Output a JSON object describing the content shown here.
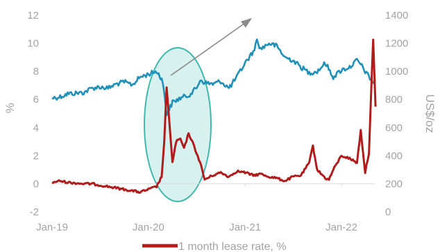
{
  "chart_data": {
    "type": "line",
    "x_tick_labels": [
      "Jan-19",
      "Jan-20",
      "Jan-21",
      "Jan-22"
    ],
    "y_left": {
      "label": "%",
      "ticks": [
        -2,
        0,
        2,
        4,
        6,
        8,
        10,
        12
      ],
      "ylim": [
        -2,
        12
      ]
    },
    "y_right": {
      "label": "US$/oz",
      "ticks": [
        0,
        200,
        400,
        600,
        800,
        1000,
        1200,
        1400
      ],
      "ylim": [
        0,
        1400
      ]
    },
    "x_range": [
      "2019-01-01",
      "2022-06-01"
    ],
    "grid": false,
    "series": [
      {
        "name": "1 month lease rate, %",
        "axis": "left",
        "color": "#b01c1c",
        "points": [
          [
            "2019-01-01",
            0.1
          ],
          [
            "2019-02-01",
            0.2
          ],
          [
            "2019-03-01",
            0.1
          ],
          [
            "2019-04-01",
            0.05
          ],
          [
            "2019-05-01",
            0.0
          ],
          [
            "2019-06-01",
            0.0
          ],
          [
            "2019-07-01",
            -0.1
          ],
          [
            "2019-08-01",
            -0.2
          ],
          [
            "2019-09-01",
            -0.3
          ],
          [
            "2019-10-01",
            -0.4
          ],
          [
            "2019-11-01",
            -0.5
          ],
          [
            "2019-12-01",
            -0.6
          ],
          [
            "2020-01-01",
            -0.4
          ],
          [
            "2020-02-01",
            -0.2
          ],
          [
            "2020-02-20",
            0.5
          ],
          [
            "2020-03-01",
            3.0
          ],
          [
            "2020-03-10",
            6.8
          ],
          [
            "2020-03-20",
            4.5
          ],
          [
            "2020-04-01",
            1.5
          ],
          [
            "2020-04-15",
            3.0
          ],
          [
            "2020-05-01",
            3.2
          ],
          [
            "2020-05-15",
            2.5
          ],
          [
            "2020-06-01",
            3.6
          ],
          [
            "2020-06-15",
            3.0
          ],
          [
            "2020-07-01",
            2.2
          ],
          [
            "2020-07-15",
            1.5
          ],
          [
            "2020-08-01",
            0.3
          ],
          [
            "2020-09-01",
            0.6
          ],
          [
            "2020-10-01",
            0.8
          ],
          [
            "2020-11-01",
            0.5
          ],
          [
            "2020-12-01",
            0.9
          ],
          [
            "2021-01-01",
            0.8
          ],
          [
            "2021-02-01",
            0.6
          ],
          [
            "2021-03-01",
            0.7
          ],
          [
            "2021-04-01",
            0.5
          ],
          [
            "2021-05-01",
            0.4
          ],
          [
            "2021-06-01",
            0.2
          ],
          [
            "2021-07-01",
            0.5
          ],
          [
            "2021-08-01",
            0.6
          ],
          [
            "2021-09-01",
            1.5
          ],
          [
            "2021-09-15",
            2.7
          ],
          [
            "2021-10-01",
            1.0
          ],
          [
            "2021-11-01",
            0.4
          ],
          [
            "2021-11-15",
            0.3
          ],
          [
            "2021-12-01",
            1.0
          ],
          [
            "2022-01-01",
            2.0
          ],
          [
            "2022-02-01",
            1.8
          ],
          [
            "2022-03-01",
            1.5
          ],
          [
            "2022-03-15",
            3.8
          ],
          [
            "2022-04-01",
            0.8
          ],
          [
            "2022-04-15",
            2.2
          ],
          [
            "2022-05-01",
            10.2
          ],
          [
            "2022-05-10",
            5.5
          ]
        ]
      },
      {
        "name": "",
        "axis": "right",
        "color": "#1f90ba",
        "points": [
          [
            "2019-01-01",
            810
          ],
          [
            "2019-02-01",
            820
          ],
          [
            "2019-03-01",
            840
          ],
          [
            "2019-04-01",
            845
          ],
          [
            "2019-05-01",
            850
          ],
          [
            "2019-06-01",
            880
          ],
          [
            "2019-07-01",
            890
          ],
          [
            "2019-08-01",
            880
          ],
          [
            "2019-09-01",
            910
          ],
          [
            "2019-10-01",
            925
          ],
          [
            "2019-11-01",
            905
          ],
          [
            "2019-12-01",
            960
          ],
          [
            "2020-01-01",
            980
          ],
          [
            "2020-02-01",
            1000
          ],
          [
            "2020-02-20",
            950
          ],
          [
            "2020-03-01",
            850
          ],
          [
            "2020-03-10",
            700
          ],
          [
            "2020-03-20",
            730
          ],
          [
            "2020-04-01",
            780
          ],
          [
            "2020-05-01",
            810
          ],
          [
            "2020-06-01",
            830
          ],
          [
            "2020-07-01",
            880
          ],
          [
            "2020-07-15",
            940
          ],
          [
            "2020-08-01",
            920
          ],
          [
            "2020-09-01",
            910
          ],
          [
            "2020-10-01",
            930
          ],
          [
            "2020-11-01",
            880
          ],
          [
            "2020-12-01",
            960
          ],
          [
            "2021-01-01",
            1060
          ],
          [
            "2021-02-01",
            1140
          ],
          [
            "2021-02-15",
            1220
          ],
          [
            "2021-03-01",
            1160
          ],
          [
            "2021-04-01",
            1200
          ],
          [
            "2021-05-01",
            1180
          ],
          [
            "2021-06-01",
            1100
          ],
          [
            "2021-07-01",
            1080
          ],
          [
            "2021-08-01",
            1030
          ],
          [
            "2021-09-01",
            990
          ],
          [
            "2021-10-01",
            1000
          ],
          [
            "2021-11-01",
            1060
          ],
          [
            "2021-12-01",
            960
          ],
          [
            "2022-01-01",
            1010
          ],
          [
            "2022-02-01",
            1030
          ],
          [
            "2022-03-01",
            1080
          ],
          [
            "2022-03-15",
            1050
          ],
          [
            "2022-04-01",
            1000
          ],
          [
            "2022-04-15",
            960
          ],
          [
            "2022-05-01",
            920
          ],
          [
            "2022-05-10",
            930
          ]
        ]
      }
    ],
    "annotations": {
      "highlight_ellipse": true,
      "arrow": true
    },
    "legend": "bottom"
  }
}
